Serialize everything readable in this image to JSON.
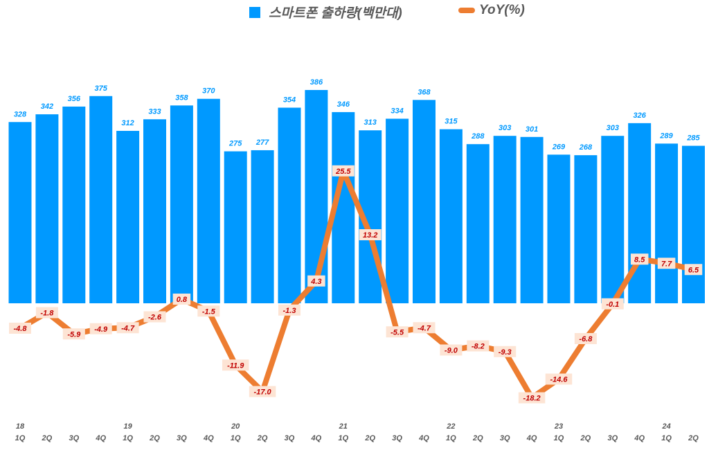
{
  "chart_data": {
    "type": "bar+line",
    "legend_position": "top",
    "grid": false,
    "categories": [
      "1Q",
      "2Q",
      "3Q",
      "4Q",
      "1Q",
      "2Q",
      "3Q",
      "4Q",
      "1Q",
      "2Q",
      "3Q",
      "4Q",
      "1Q",
      "2Q",
      "3Q",
      "4Q",
      "1Q",
      "2Q",
      "3Q",
      "4Q",
      "1Q",
      "2Q",
      "3Q",
      "4Q",
      "1Q",
      "2Q"
    ],
    "year_labels": [
      "18",
      "",
      "",
      "",
      "19",
      "",
      "",
      "",
      "20",
      "",
      "",
      "",
      "21",
      "",
      "",
      "",
      "22",
      "",
      "",
      "",
      "23",
      "",
      "",
      "",
      "24",
      ""
    ],
    "series": [
      {
        "name": "스마트폰 출하량(백만대)",
        "type": "bar",
        "color": "#0099ff",
        "values": [
          328,
          342,
          356,
          375,
          312,
          333,
          358,
          370,
          275,
          277,
          354,
          386,
          346,
          313,
          334,
          368,
          315,
          288,
          303,
          301,
          269,
          268,
          303,
          326,
          289,
          285
        ]
      },
      {
        "name": "YoY(%)",
        "type": "line",
        "color": "#ed7d31",
        "values": [
          -4.8,
          -1.8,
          -5.9,
          -4.9,
          -4.7,
          -2.6,
          0.8,
          -1.5,
          -11.9,
          -17.0,
          -1.3,
          4.3,
          25.5,
          13.2,
          -5.5,
          -4.7,
          -9.0,
          -8.2,
          -9.3,
          -18.2,
          -14.6,
          -6.8,
          -0.1,
          8.5,
          7.7,
          6.5
        ]
      }
    ]
  }
}
